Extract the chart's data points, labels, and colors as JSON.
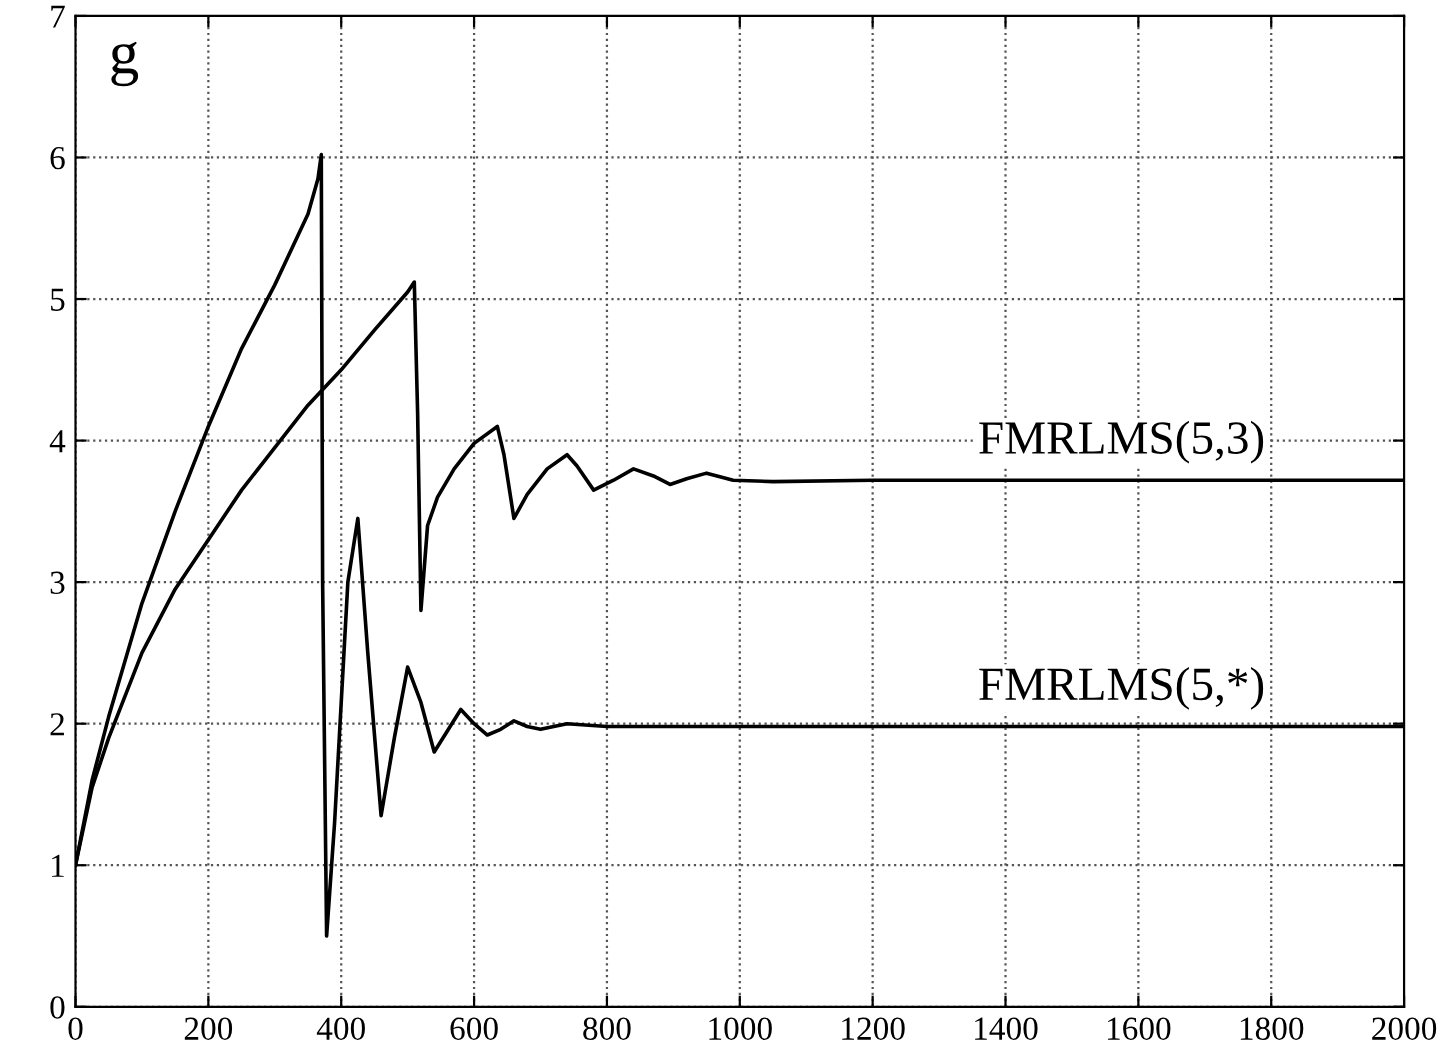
{
  "chart_data": {
    "type": "line",
    "annotations": [
      "g"
    ],
    "xlim": [
      0,
      2000
    ],
    "ylim": [
      0,
      7
    ],
    "xticks": [
      0,
      200,
      400,
      600,
      800,
      1000,
      1200,
      1400,
      1600,
      1800,
      2000
    ],
    "yticks": [
      0,
      1,
      2,
      3,
      4,
      5,
      6,
      7
    ],
    "grid": true,
    "legend": false,
    "marker": "none",
    "line_style": "solid",
    "series": [
      {
        "name": "FMRLMS(5,3)",
        "color": "#000000",
        "x": [
          0,
          25,
          50,
          100,
          150,
          200,
          250,
          300,
          350,
          400,
          450,
          500,
          510,
          515,
          520,
          530,
          545,
          570,
          600,
          635,
          645,
          660,
          680,
          710,
          740,
          755,
          780,
          810,
          840,
          870,
          895,
          920,
          950,
          990,
          1050,
          1200,
          1500,
          2000
        ],
        "values": [
          1,
          1.55,
          1.9,
          2.5,
          2.95,
          3.3,
          3.65,
          3.95,
          4.25,
          4.5,
          4.78,
          5.05,
          5.12,
          4.2,
          2.8,
          3.4,
          3.6,
          3.8,
          3.98,
          4.1,
          3.9,
          3.45,
          3.62,
          3.8,
          3.9,
          3.82,
          3.65,
          3.72,
          3.8,
          3.75,
          3.69,
          3.73,
          3.77,
          3.72,
          3.71,
          3.72,
          3.72,
          3.72
        ]
      },
      {
        "name": "FMRLMS(5,*)",
        "color": "#000000",
        "x": [
          0,
          25,
          50,
          100,
          150,
          200,
          250,
          300,
          350,
          365,
          370,
          372,
          378,
          390,
          410,
          425,
          440,
          460,
          480,
          500,
          520,
          540,
          560,
          580,
          600,
          620,
          640,
          660,
          680,
          700,
          740,
          800,
          1000,
          1500,
          2000
        ],
        "values": [
          1,
          1.6,
          2.05,
          2.85,
          3.5,
          4.1,
          4.65,
          5.1,
          5.6,
          5.85,
          6.02,
          3.0,
          0.5,
          1.3,
          3.0,
          3.45,
          2.5,
          1.35,
          1.9,
          2.4,
          2.15,
          1.8,
          1.95,
          2.1,
          2.0,
          1.92,
          1.96,
          2.02,
          1.98,
          1.96,
          2.0,
          1.98,
          1.98,
          1.98,
          1.98
        ]
      }
    ]
  }
}
